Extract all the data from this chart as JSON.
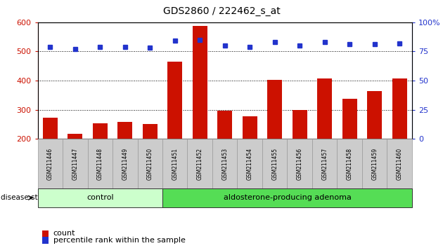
{
  "title": "GDS2860 / 222462_s_at",
  "samples": [
    "GSM211446",
    "GSM211447",
    "GSM211448",
    "GSM211449",
    "GSM211450",
    "GSM211451",
    "GSM211452",
    "GSM211453",
    "GSM211454",
    "GSM211455",
    "GSM211456",
    "GSM211457",
    "GSM211458",
    "GSM211459",
    "GSM211460"
  ],
  "counts": [
    272,
    218,
    253,
    258,
    250,
    465,
    588,
    297,
    278,
    402,
    300,
    408,
    337,
    365,
    407
  ],
  "percentiles": [
    79,
    77,
    79,
    79,
    78,
    84,
    85,
    80,
    79,
    83,
    80,
    83,
    81,
    81,
    82
  ],
  "n_control": 5,
  "n_adenoma": 10,
  "control_color": "#ccffcc",
  "adenoma_color": "#55dd55",
  "bar_color": "#cc1100",
  "dot_color": "#2233cc",
  "ylim_left": [
    200,
    600
  ],
  "ylim_right": [
    0,
    100
  ],
  "yticks_left": [
    200,
    300,
    400,
    500,
    600
  ],
  "yticks_right": [
    0,
    25,
    50,
    75,
    100
  ],
  "grid_values": [
    300,
    400,
    500
  ],
  "background_color": "#ffffff",
  "disease_state_label": "disease state",
  "group_labels": [
    "control",
    "aldosterone-producing adenoma"
  ],
  "legend_count": "count",
  "legend_pct": "percentile rank within the sample"
}
